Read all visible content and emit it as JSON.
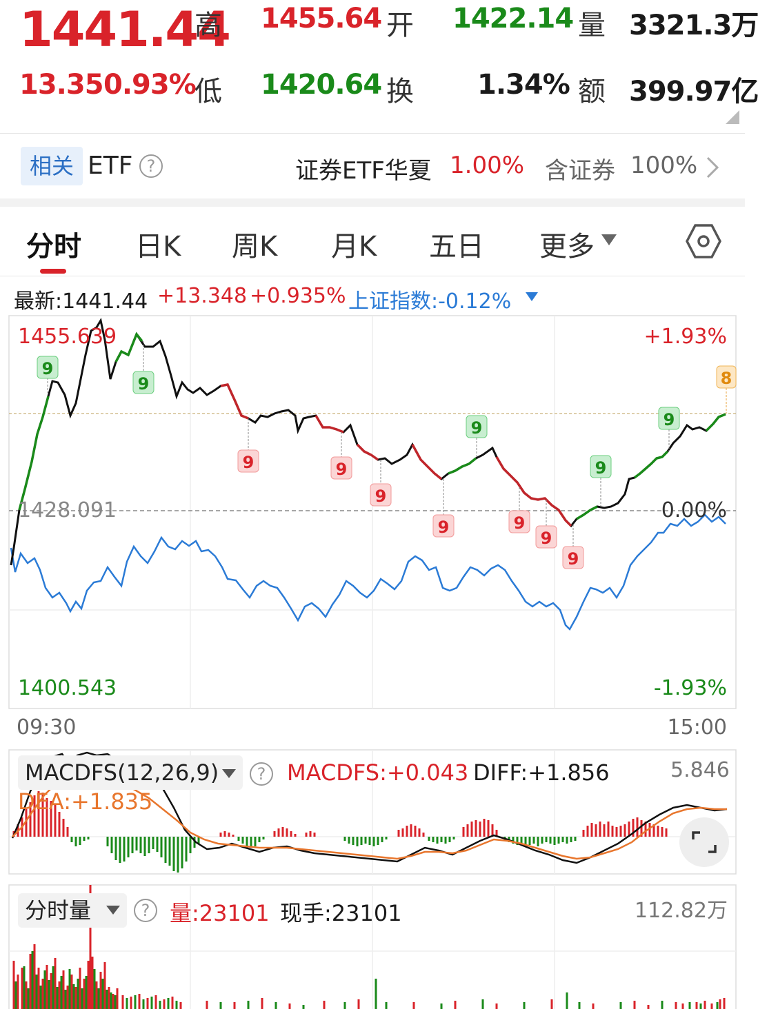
{
  "quote": {
    "price": "1441.44",
    "change": "13.35",
    "change_pct": "0.93%",
    "high_label": "高",
    "high": "1455.64",
    "open_label": "开",
    "open": "1422.14",
    "volume_label": "量",
    "volume": "3321.3万",
    "low_label": "低",
    "low": "1420.64",
    "turnover_label": "换",
    "turnover": "1.34%",
    "amount_label": "额",
    "amount": "399.97亿"
  },
  "etf": {
    "tag": "相关",
    "label": "ETF",
    "name": "证券ETF华夏",
    "pct": "1.00%",
    "holding_label": "含证券",
    "holding_pct": "100%"
  },
  "tabs": [
    {
      "label": "分时",
      "active": true
    },
    {
      "label": "日K"
    },
    {
      "label": "周K"
    },
    {
      "label": "月K"
    },
    {
      "label": "五日"
    },
    {
      "label": "更多"
    }
  ],
  "info": {
    "latest": "最新:1441.44",
    "change": "+13.348",
    "change_pct": "+0.935%",
    "index": "上证指数:-0.12%"
  },
  "chart": {
    "y_high": "1455.639",
    "y_mid": "1428.091",
    "y_low": "1400.543",
    "pct_high": "+1.93%",
    "pct_mid": "0.00%",
    "pct_low": "-1.93%",
    "time_start": "09:30",
    "time_end": "15:00",
    "last_signal": "8"
  },
  "macd": {
    "select": "MACDFS(12,26,9)",
    "macdfs": "MACDFS:+0.043",
    "diff": "DIFF:+1.856",
    "dea": "DEA:+1.835",
    "max": "5.846"
  },
  "vol": {
    "select": "分时量",
    "volume": "量:23101",
    "hand": "现手:23101",
    "max": "112.82万"
  },
  "chart_data": {
    "type": "line",
    "x": [
      "09:30",
      "15:00"
    ],
    "y_range": [
      1400.543,
      1455.639
    ],
    "pct_range": [
      "-1.93%",
      "+1.93%"
    ],
    "prev_close": 1428.091,
    "price_high": 1455.64,
    "price_low": 1420.64,
    "last": 1441.44,
    "grid": true,
    "series": [
      {
        "name": "最新",
        "color": "#111111"
      },
      {
        "name": "上证指数",
        "color": "#2b7bd6"
      }
    ]
  },
  "colors": {
    "up": "#d9232a",
    "down": "#1a8a1a",
    "index": "#2b7bd6",
    "dea": "#e8762d"
  }
}
